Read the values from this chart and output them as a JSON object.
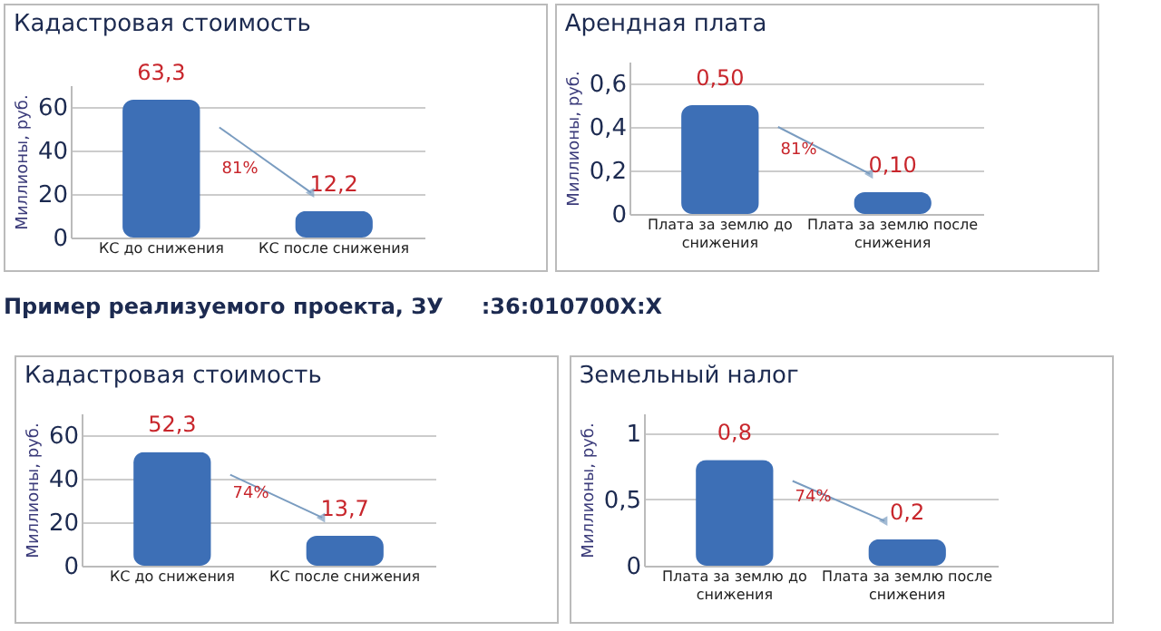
{
  "chart_data": [
    {
      "type": "bar",
      "title": "Кадастровая стоимость",
      "ylabel": "Миллионы, руб.",
      "categories": [
        "КС до снижения",
        "КС после  снижения"
      ],
      "values": [
        63.3,
        12.2
      ],
      "value_labels": [
        "63,3",
        "12,2"
      ],
      "color": "#3d6fb6",
      "ylim": [
        0,
        70
      ],
      "yticks": [
        0,
        20,
        40,
        60
      ],
      "grid": "y",
      "annotations": [
        "81%"
      ]
    },
    {
      "type": "bar",
      "title": "Арендная плата",
      "ylabel": "Миллионы, руб.",
      "categories": [
        "Плата за землю до снижения",
        "Плата за землю после снижения"
      ],
      "values": [
        0.5,
        0.1
      ],
      "value_labels": [
        "0,50",
        "0,10"
      ],
      "color": "#3d6fb6",
      "ylim": [
        0,
        0.7
      ],
      "yticks": [
        0,
        {
          "value": 0.2,
          "label": "0,2"
        },
        {
          "value": 0.4,
          "label": "0,4"
        },
        {
          "value": 0.6,
          "label": "0,6"
        }
      ],
      "grid": "y",
      "annotations": [
        "81%"
      ]
    },
    {
      "type": "bar",
      "title": "Кадастровая стоимость",
      "ylabel": "Миллионы, руб.",
      "categories": [
        "КС до снижения",
        "КС после  снижения"
      ],
      "values": [
        52.3,
        13.7
      ],
      "value_labels": [
        "52,3",
        "13,7"
      ],
      "color": "#3d6fb6",
      "ylim": [
        0,
        70
      ],
      "yticks": [
        0,
        20,
        40,
        60
      ],
      "grid": "y",
      "annotations": [
        "Пример реализуемого проекта, ЗУ     :36:010700Х:Х",
        "74%"
      ]
    },
    {
      "type": "bar",
      "title": "Земельный налог",
      "ylabel": "Миллионы, руб.",
      "categories": [
        "Плата за землю до снижения",
        "Плата за землю после снижения"
      ],
      "values": [
        0.8,
        0.2
      ],
      "value_labels": [
        "0,8",
        "0,2"
      ],
      "color": "#3d6fb6",
      "ylim": [
        0,
        1.15
      ],
      "yticks": [
        0,
        {
          "value": 0.5,
          "label": "0,5"
        },
        1
      ],
      "grid": "y",
      "annotations": [
        "74%"
      ]
    }
  ]
}
